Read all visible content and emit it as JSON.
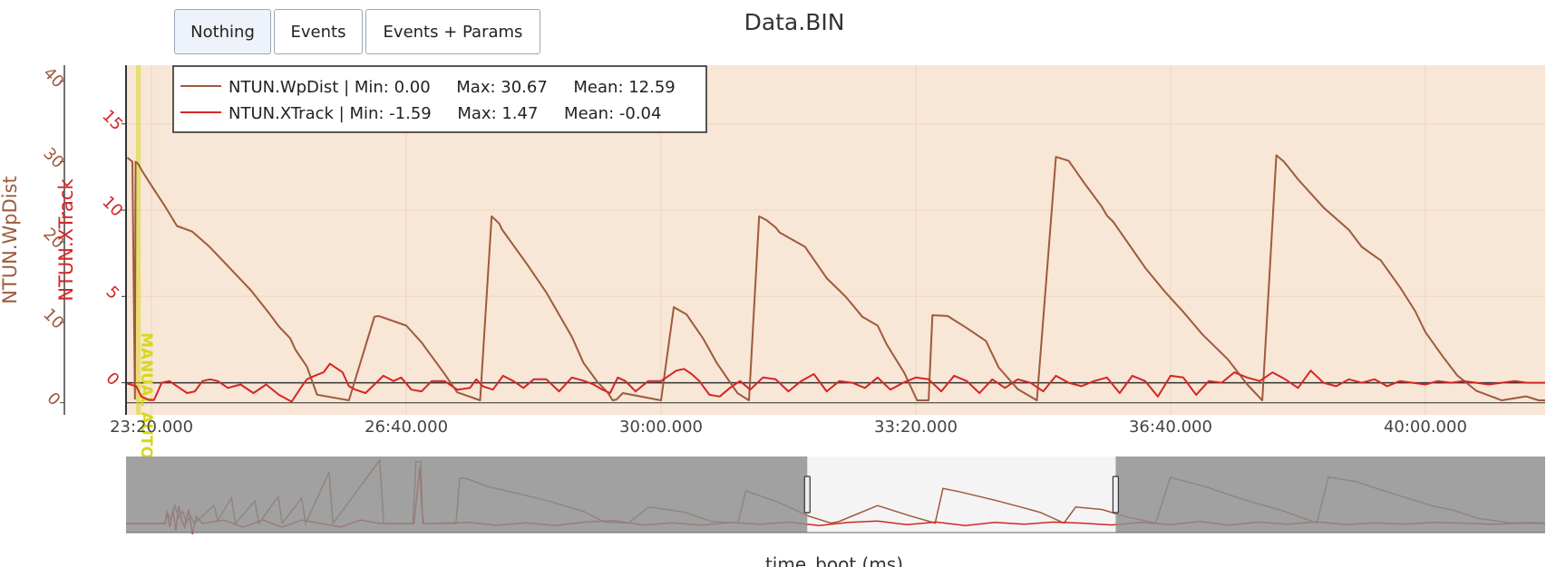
{
  "toolbar": {
    "buttons": [
      {
        "label": "Nothing",
        "active": true
      },
      {
        "label": "Events",
        "active": false
      },
      {
        "label": "Events + Params",
        "active": false
      }
    ]
  },
  "colors": {
    "wpdist": "#9e5a3c",
    "xtrack": "#d42626",
    "plot_bg": "#f8e6d6",
    "mode_marker": "#d8d61e",
    "range_unselected": "#8f8f8f"
  },
  "chart_data": {
    "type": "line",
    "title": "Data.BIN",
    "xlabel": "time_boot (ms)",
    "x_tick_labels": [
      "23:20.000",
      "26:40.000",
      "30:00.000",
      "33:20.000",
      "36:40.000",
      "40:00.000"
    ],
    "x_tick_seconds": [
      1400,
      1600,
      1800,
      2000,
      2200,
      2400
    ],
    "xlim_seconds": [
      1380,
      2494
    ],
    "y_axes": [
      {
        "label": "NTUN.WpDist",
        "ticks": [
          0,
          10,
          20,
          30,
          40
        ],
        "ylim": [
          -1.5,
          42
        ],
        "color": "#9e5a3c"
      },
      {
        "label": "NTUN.XTrack",
        "ticks": [
          0,
          5,
          10,
          15
        ],
        "ylim": [
          -1.86,
          18.4
        ],
        "color": "#d42626"
      }
    ],
    "annotations": [
      {
        "text": "MANUAL AUTO",
        "x_seconds": 1390
      }
    ],
    "legend": [
      {
        "name": "NTUN.WpDist",
        "text": "NTUN.WpDist | Min: 0.00     Max: 30.67     Mean: 12.59"
      },
      {
        "name": "NTUN.XTrack",
        "text": "NTUN.XTrack | Min: -1.59     Max: 1.47     Mean: -0.04"
      }
    ],
    "series": [
      {
        "name": "NTUN.WpDist",
        "axis": 0,
        "x": [
          1381,
          1385,
          1387,
          1387.5,
          1389,
          1390,
          1392,
          1398,
          1410,
          1420,
          1432,
          1445,
          1460,
          1478,
          1492,
          1500,
          1509,
          1513,
          1522,
          1530,
          1555,
          1575,
          1578,
          1580,
          1600,
          1612,
          1630,
          1640,
          1658,
          1667,
          1673,
          1675,
          1695,
          1710,
          1730,
          1739,
          1750,
          1758,
          1762,
          1765,
          1770,
          1800,
          1810,
          1820,
          1833,
          1844,
          1860,
          1869,
          1877,
          1883,
          1890,
          1893,
          1913,
          1930,
          1945,
          1958,
          1970,
          1977,
          1991,
          2001,
          2010,
          2013,
          2025,
          2040,
          2055,
          2065,
          2080,
          2095,
          2110,
          2120,
          2132,
          2146,
          2150,
          2155,
          2170,
          2180,
          2195,
          2210,
          2225,
          2245,
          2260,
          2272,
          2283,
          2289,
          2300,
          2320,
          2340,
          2350,
          2365,
          2380,
          2392,
          2400,
          2413,
          2425,
          2440,
          2460,
          2479,
          2489,
          2494
        ],
        "values": [
          30.5,
          30,
          0.5,
          30,
          29.8,
          29.6,
          29,
          27.5,
          24.6,
          22,
          21.3,
          19.5,
          17,
          14,
          11.2,
          9.5,
          8,
          6.6,
          4.5,
          1,
          0.3,
          10.7,
          10.8,
          10.7,
          9.6,
          7.5,
          3.6,
          1.3,
          0.3,
          23.2,
          22.3,
          21.6,
          17.2,
          13.7,
          8.2,
          5,
          2.6,
          1.3,
          0.3,
          0.4,
          1.2,
          0.3,
          11.9,
          11,
          8,
          4.9,
          1.2,
          0.3,
          23.2,
          22.7,
          21.8,
          21.2,
          19.4,
          15.5,
          13.2,
          10.7,
          9.6,
          7.3,
          3.7,
          0.3,
          0.3,
          10.9,
          10.8,
          9.3,
          7.7,
          4.4,
          1.7,
          0.3,
          30.6,
          30.1,
          27.4,
          24.4,
          23.3,
          22.5,
          19.1,
          16.8,
          13.9,
          11.3,
          8.5,
          5.4,
          2.3,
          0.3,
          30.8,
          30,
          27.8,
          24.3,
          21.5,
          19.4,
          17.7,
          14.4,
          11.4,
          8.8,
          5.9,
          3.4,
          1.5,
          0.3,
          0.8,
          0.3,
          0.3
        ]
      },
      {
        "name": "NTUN.XTrack",
        "axis": 1,
        "x": [
          1381,
          1388,
          1392,
          1398,
          1402,
          1408,
          1414,
          1420,
          1428,
          1434,
          1440,
          1446,
          1452,
          1460,
          1470,
          1480,
          1490,
          1500,
          1510,
          1518,
          1522,
          1528,
          1535,
          1540,
          1550,
          1555,
          1560,
          1568,
          1575,
          1582,
          1590,
          1596,
          1604,
          1612,
          1620,
          1630,
          1640,
          1650,
          1655,
          1660,
          1668,
          1676,
          1684,
          1692,
          1700,
          1710,
          1720,
          1730,
          1740,
          1747,
          1754,
          1760,
          1766,
          1772,
          1780,
          1790,
          1800,
          1806,
          1812,
          1818,
          1824,
          1830,
          1838,
          1846,
          1854,
          1862,
          1870,
          1880,
          1890,
          1900,
          1910,
          1920,
          1930,
          1940,
          1950,
          1960,
          1970,
          1980,
          1990,
          2000,
          2010,
          2020,
          2030,
          2040,
          2050,
          2060,
          2070,
          2080,
          2090,
          2100,
          2110,
          2120,
          2130,
          2140,
          2150,
          2160,
          2170,
          2180,
          2190,
          2200,
          2210,
          2220,
          2230,
          2240,
          2250,
          2260,
          2270,
          2280,
          2290,
          2300,
          2310,
          2320,
          2330,
          2340,
          2350,
          2360,
          2370,
          2380,
          2390,
          2400,
          2410,
          2420,
          2430,
          2440,
          2450,
          2460,
          2470,
          2480,
          2494
        ],
        "values": [
          -0.05,
          -0.2,
          -0.8,
          -1,
          -1,
          0,
          0.1,
          -0.2,
          -0.6,
          -0.5,
          0.1,
          0.2,
          0.1,
          -0.3,
          -0.1,
          -0.6,
          -0.1,
          -0.7,
          -1.1,
          -0.2,
          0.2,
          0.4,
          0.6,
          1.1,
          0.6,
          -0.2,
          -0.4,
          -0.6,
          -0.1,
          0.4,
          0.1,
          0.3,
          -0.4,
          -0.5,
          0.1,
          0.1,
          -0.4,
          -0.3,
          0.2,
          -0.2,
          -0.4,
          0.4,
          0.1,
          -0.3,
          0.2,
          0.2,
          -0.5,
          0.3,
          0.1,
          -0.1,
          -0.4,
          -0.6,
          0.3,
          0.1,
          -0.5,
          0.1,
          0.1,
          0.4,
          0.7,
          0.8,
          0.5,
          0.1,
          -0.7,
          -0.8,
          -0.3,
          0.1,
          -0.4,
          0.3,
          0.2,
          -0.5,
          0.1,
          0.5,
          -0.5,
          0.1,
          0.0,
          -0.3,
          0.3,
          -0.4,
          0.0,
          0.3,
          0.2,
          -0.5,
          0.4,
          0.1,
          -0.6,
          0.2,
          -0.3,
          0.2,
          0.0,
          -0.5,
          0.4,
          0.0,
          -0.2,
          0.1,
          0.3,
          -0.6,
          0.4,
          0.1,
          -0.8,
          0.4,
          0.3,
          -0.7,
          0.1,
          0.0,
          0.6,
          0.3,
          0.1,
          0.6,
          0.2,
          -0.3,
          0.7,
          0.0,
          -0.2,
          0.2,
          0.0,
          0.2,
          -0.2,
          0.1,
          0.0,
          -0.1,
          0.1,
          0.0,
          0.1,
          0.0,
          -0.1,
          0.0,
          0.1,
          0.0,
          0.0
        ]
      }
    ],
    "rangeslider": {
      "selected_x_seconds": [
        1738,
        2054
      ],
      "full_x_seconds": [
        1040,
        2494
      ],
      "overview": [
        {
          "name": "NTUN.WpDist",
          "x": [
            1040,
            1080,
            1082,
            1086,
            1090,
            1094,
            1098,
            1102,
            1106,
            1110,
            1130,
            1134,
            1148,
            1152,
            1172,
            1176,
            1196,
            1200,
            1220,
            1224,
            1248,
            1252,
            1300,
            1304,
            1334,
            1337,
            1342,
            1344,
            1348,
            1378,
            1382,
            1386,
            1390,
            1410,
            1432,
            1460,
            1478,
            1509,
            1530,
            1555,
            1575,
            1580,
            1612,
            1640,
            1667,
            1675,
            1710,
            1739,
            1762,
            1770,
            1810,
            1844,
            1869,
            1877,
            1893,
            1930,
            1958,
            1977,
            2001,
            2013,
            2040,
            2065,
            2095,
            2110,
            2146,
            2170,
            2195,
            2225,
            2260,
            2272,
            2300,
            2340,
            2380,
            2400,
            2425,
            2460,
            2479,
            2494
          ],
          "values": [
            0,
            0,
            8,
            2,
            12,
            4,
            8,
            1,
            5,
            0,
            12,
            2,
            17,
            0,
            15,
            0,
            18,
            0,
            17,
            0,
            34,
            0,
            42,
            0,
            0,
            41,
            41,
            0,
            0,
            0,
            30,
            30,
            29.6,
            24.6,
            21.3,
            17,
            14,
            8,
            1,
            0.3,
            10.7,
            10.7,
            7.5,
            1.3,
            0.3,
            21.6,
            13.7,
            5,
            0.3,
            1.2,
            11.9,
            4.9,
            0.3,
            23.2,
            21.2,
            15.5,
            10.7,
            7.3,
            0.3,
            10.9,
            9.3,
            4.4,
            0.3,
            30.6,
            24.4,
            19.1,
            13.9,
            8.5,
            0.3,
            30.8,
            27.8,
            19.4,
            11.4,
            8.8,
            3.4,
            0.3,
            0.8,
            0.3
          ]
        },
        {
          "name": "NTUN.XTrack",
          "x": [
            1040,
            1080,
            1082,
            1085,
            1088,
            1091,
            1094,
            1097,
            1100,
            1104,
            1108,
            1112,
            1118,
            1140,
            1160,
            1180,
            1200,
            1220,
            1240,
            1260,
            1280,
            1300,
            1335,
            1341,
            1343,
            1345,
            1350,
            1390,
            1420,
            1450,
            1480,
            1510,
            1540,
            1570,
            1600,
            1630,
            1660,
            1690,
            1720,
            1750,
            1780,
            1810,
            1840,
            1870,
            1900,
            1930,
            1960,
            1990,
            2020,
            2050,
            2080,
            2110,
            2140,
            2170,
            2200,
            2230,
            2260,
            2290,
            2320,
            2350,
            2380,
            2410,
            2440,
            2470,
            2494
          ],
          "values": [
            0,
            0,
            3,
            -1,
            4,
            -2,
            5,
            1,
            -1,
            4,
            -3,
            2,
            0,
            1,
            -1,
            1,
            -1,
            1,
            0,
            -1,
            1,
            0,
            0,
            16,
            4,
            0,
            0,
            0.3,
            -0.5,
            0.2,
            -0.6,
            0.4,
            0.8,
            -0.4,
            0.2,
            -0.5,
            0.3,
            -0.2,
            0.4,
            -0.6,
            0.3,
            0.7,
            -0.3,
            0.4,
            -0.6,
            0.3,
            -0.2,
            0.4,
            0.1,
            -0.4,
            0.3,
            -0.3,
            0.6,
            -0.5,
            0.4,
            -0.2,
            0.5,
            -0.3,
            0.2,
            -0.2,
            0.3,
            0.1,
            -0.2,
            0.1,
            0
          ]
        }
      ]
    }
  }
}
